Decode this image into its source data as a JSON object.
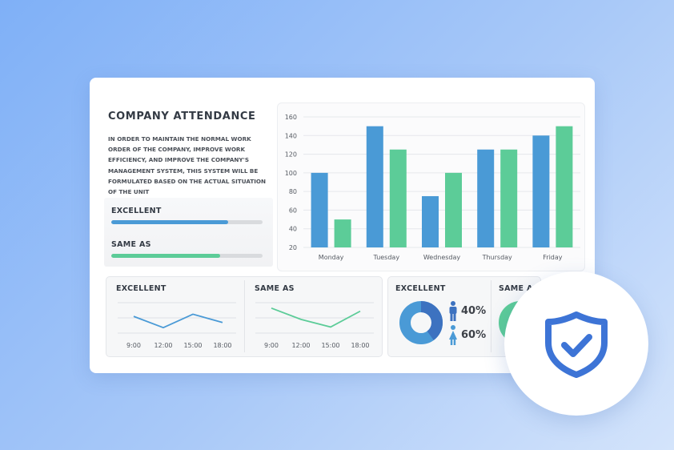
{
  "header": {
    "title": "COMPANY ATTENDANCE",
    "description": "IN ORDER TO MAINTAIN THE NORMAL WORK ORDER OF THE COMPANY, IMPROVE WORK EFFICIENCY, AND IMPROVE THE COMPANY'S MANAGEMENT SYSTEM, THIS SYSTEM WILL BE FORMULATED BASED ON THE ACTUAL SITUATION OF THE UNIT"
  },
  "progress": [
    {
      "label": "EXCELLENT",
      "value": 0.77,
      "color": "#4a9ad6"
    },
    {
      "label": "SAME AS",
      "value": 0.72,
      "color": "#5ccc98"
    }
  ],
  "chart_data": {
    "type": "bar",
    "categories": [
      "Monday",
      "Tuesday",
      "Wednesday",
      "Thursday",
      "Friday"
    ],
    "series": [
      {
        "values": [
          100,
          150,
          75,
          125,
          140
        ],
        "color": "#4a9ad6"
      },
      {
        "values": [
          50,
          125,
          100,
          125,
          150
        ],
        "color": "#5ccc98"
      }
    ],
    "ylim": [
      20,
      160
    ],
    "yticks": [
      20,
      40,
      60,
      80,
      100,
      120,
      140,
      160
    ],
    "grid": true
  },
  "mini_charts": [
    {
      "title": "EXCELLENT",
      "x": [
        "9:00",
        "12:00",
        "15:00",
        "18:00"
      ],
      "values": [
        0.55,
        0.18,
        0.62,
        0.35
      ],
      "color": "#4a9ad6"
    },
    {
      "title": "SAME AS",
      "x": [
        "9:00",
        "12:00",
        "15:00",
        "18:00"
      ],
      "values": [
        0.82,
        0.45,
        0.2,
        0.72
      ],
      "color": "#5ccc98"
    }
  ],
  "donut": {
    "title": "EXCELLENT",
    "male_pct": "40%",
    "female_pct": "60%",
    "male_value": 40,
    "female_value": 60,
    "colors": {
      "male": "#3d72c0",
      "female": "#4a9ad6"
    }
  },
  "donut2": {
    "title": "SAME AS",
    "color": "#5ccc98"
  },
  "badge": {
    "icon": "shield-check-icon",
    "color": "#3d74d6"
  }
}
